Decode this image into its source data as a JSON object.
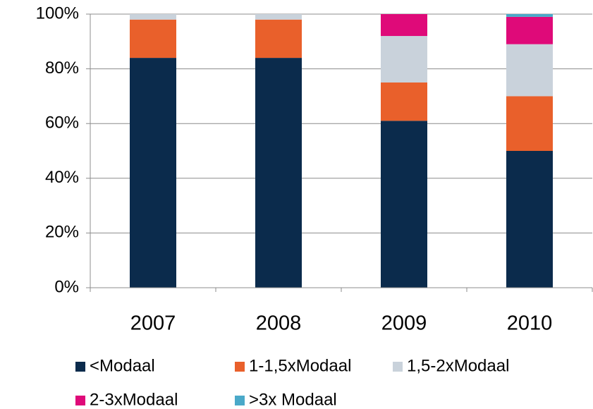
{
  "chart_data": {
    "type": "stacked_bar",
    "categories": [
      "2007",
      "2008",
      "2009",
      "2010"
    ],
    "series": [
      {
        "name": "<Modaal",
        "color": "#0b2b4c",
        "values": [
          84,
          84,
          61,
          50
        ]
      },
      {
        "name": "1-1,5xModaal",
        "color": "#e9602b",
        "values": [
          14,
          14,
          14,
          20
        ]
      },
      {
        "name": "1,5-2xModaal",
        "color": "#c9d2db",
        "values": [
          2,
          2,
          17,
          19
        ]
      },
      {
        "name": "2-3xModaal",
        "color": "#df0a79",
        "values": [
          0,
          0,
          8,
          10
        ]
      },
      {
        "name": ">3x Modaal",
        "color": "#4aa9c9",
        "values": [
          0,
          0,
          0,
          1
        ]
      }
    ],
    "ylim": [
      0,
      100
    ],
    "yticks": [
      {
        "value": 0,
        "label": "0%"
      },
      {
        "value": 20,
        "label": "20%"
      },
      {
        "value": 40,
        "label": "40%"
      },
      {
        "value": 60,
        "label": "60%"
      },
      {
        "value": 80,
        "label": "80%"
      },
      {
        "value": 100,
        "label": "100%"
      }
    ],
    "grid": true,
    "legend": "bottom"
  }
}
